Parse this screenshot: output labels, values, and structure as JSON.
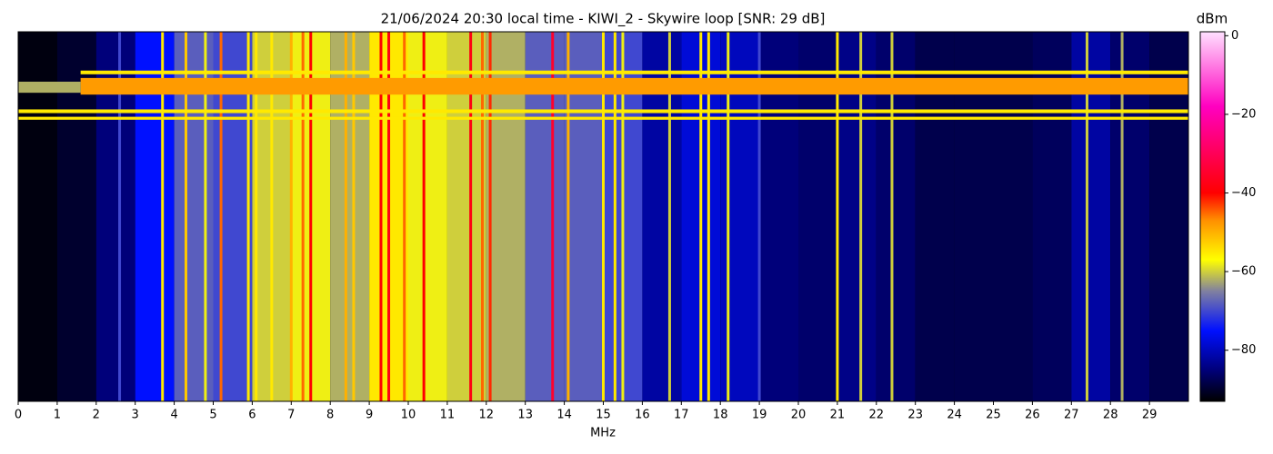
{
  "chart_data": {
    "type": "spectrogram",
    "title": "21/06/2024 20:30 local time - KIWI_2 - Skywire loop [SNR: 29 dB]",
    "xlabel": "MHz",
    "colorbar_label": "dBm",
    "xlim": [
      0,
      30
    ],
    "xticks": [
      0,
      1,
      2,
      3,
      4,
      5,
      6,
      7,
      8,
      9,
      10,
      11,
      12,
      13,
      14,
      15,
      16,
      17,
      18,
      19,
      20,
      21,
      22,
      23,
      24,
      25,
      26,
      27,
      28,
      29
    ],
    "ylim": [
      0,
      100
    ],
    "clim": [
      -93,
      1
    ],
    "cticks": [
      0,
      {
        "value": -20,
        "label": "−20"
      },
      {
        "value": -40,
        "label": "−40"
      },
      {
        "value": -60,
        "label": "−60"
      },
      {
        "value": -80,
        "label": "−80"
      }
    ],
    "colormap": [
      {
        "value": -93,
        "color": "#000000"
      },
      {
        "value": -85,
        "color": "#00007a"
      },
      {
        "value": -75,
        "color": "#0010ff"
      },
      {
        "value": -65,
        "color": "#8080a0"
      },
      {
        "value": -57,
        "color": "#ffff00"
      },
      {
        "value": -47,
        "color": "#ff9000"
      },
      {
        "value": -40,
        "color": "#ff0000"
      },
      {
        "value": -18,
        "color": "#ff00c0"
      },
      {
        "value": 1,
        "color": "#ffe0ff"
      }
    ],
    "background": {
      "x": [
        0,
        1,
        2,
        3,
        4,
        5,
        6,
        7,
        8,
        9,
        10,
        11,
        12,
        13,
        14,
        15,
        16,
        17,
        18,
        19,
        20,
        21,
        22,
        23,
        24,
        25,
        26,
        27,
        28,
        29
      ],
      "values": [
        -92,
        -90,
        -85,
        -75,
        -68,
        -70,
        -60,
        -58,
        -62,
        -55,
        -58,
        -60,
        -62,
        -68,
        -68,
        -70,
        -82,
        -78,
        -80,
        -85,
        -86,
        -84,
        -86,
        -88,
        -88,
        -88,
        -87,
        -82,
        -86,
        -88
      ]
    },
    "lines": {
      "x": [
        2.6,
        3.7,
        4.3,
        4.8,
        5.2,
        5.9,
        6.1,
        6.5,
        7.0,
        7.3,
        7.5,
        8.4,
        8.6,
        9.3,
        9.5,
        9.9,
        10.4,
        11.6,
        11.9,
        12.1,
        13.7,
        14.1,
        15.0,
        15.3,
        15.5,
        16.7,
        17.5,
        17.7,
        18.2,
        19.0,
        21.0,
        21.6,
        22.4,
        27.4,
        28.3
      ],
      "values": [
        -70,
        -55,
        -52,
        -58,
        -45,
        -55,
        -55,
        -55,
        -50,
        -45,
        -40,
        -50,
        -52,
        -40,
        -38,
        -45,
        -40,
        -38,
        -45,
        -42,
        -35,
        -50,
        -55,
        -55,
        -58,
        -60,
        -55,
        -55,
        -58,
        -70,
        -55,
        -60,
        -60,
        -60,
        -62
      ]
    },
    "hbands": [
      {
        "x": [
          1.6,
          30
        ],
        "y": [
          10.5,
          11.5
        ],
        "value": -55
      },
      {
        "x": [
          1.6,
          30
        ],
        "y": [
          12.5,
          17
        ],
        "value": -48
      },
      {
        "x": [
          0,
          1.6
        ],
        "y": [
          13.5,
          16.5
        ],
        "value": -62
      },
      {
        "x": [
          0,
          30
        ],
        "y": [
          21,
          22
        ],
        "value": -55
      },
      {
        "x": [
          0,
          30
        ],
        "y": [
          23,
          23.8
        ],
        "value": -55
      }
    ]
  }
}
